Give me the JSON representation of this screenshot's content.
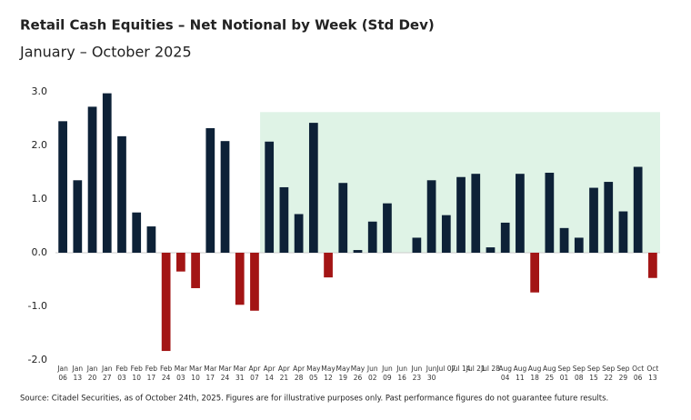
{
  "chart_data": {
    "type": "bar",
    "title": "Retail Cash Equities – Net Notional by Week (Std Dev)",
    "subtitle": "January – October 2025",
    "source": "Source: Citadel Securities, as of October 24th, 2025. Figures are for illustrative purposes only. Past performance figures do not guarantee future results.",
    "categories": [
      "Jan 06",
      "Jan 13",
      "Jan 20",
      "Jan 27",
      "Feb 03",
      "Feb 10",
      "Feb 17",
      "Feb 24",
      "Mar 03",
      "Mar 10",
      "Mar 17",
      "Mar 24",
      "Mar 31",
      "Apr 07",
      "Apr 14",
      "Apr 21",
      "Apr 28",
      "May 05",
      "May 12",
      "May 19",
      "May 26",
      "Jun 02",
      "Jun 09",
      "Jun 16",
      "Jun 23",
      "Jun 30",
      "Jul 07",
      "Jul 14",
      "Jul 21",
      "Jul 28",
      "Aug 04",
      "Aug 11",
      "Aug 18",
      "Aug 25",
      "Sep 01",
      "Sep 08",
      "Sep 15",
      "Sep 22",
      "Sep 29",
      "Oct 06",
      "Oct 13"
    ],
    "values": [
      2.45,
      1.35,
      2.72,
      2.97,
      2.17,
      0.75,
      0.49,
      -1.83,
      -0.35,
      -0.66,
      2.32,
      2.08,
      -0.97,
      -1.08,
      2.07,
      1.22,
      0.72,
      2.42,
      -0.46,
      1.3,
      0.05,
      0.58,
      0.92,
      0,
      0.28,
      1.35,
      0.7,
      1.41,
      1.47,
      0.1,
      0.56,
      1.47,
      -0.74,
      1.49,
      0.46,
      0.28,
      1.21,
      1.32,
      0.77,
      1.6,
      -0.47
    ],
    "positive_color": "#0d2137",
    "negative_color": "#a31515",
    "shade": {
      "from_index": 14,
      "ylim": [
        0,
        2.62
      ],
      "color": "#dff3e6"
    },
    "ylim": [
      -2.1,
      3.15
    ],
    "yticks": [
      {
        "value": 3,
        "label": "3.0"
      },
      {
        "value": 2,
        "label": "2.0"
      },
      {
        "value": 1,
        "label": "1.0"
      },
      {
        "value": 0,
        "label": "0.0"
      },
      {
        "value": -1,
        "label": "-1.0"
      },
      {
        "value": -2,
        "label": "-2.0"
      }
    ],
    "grid": false
  }
}
